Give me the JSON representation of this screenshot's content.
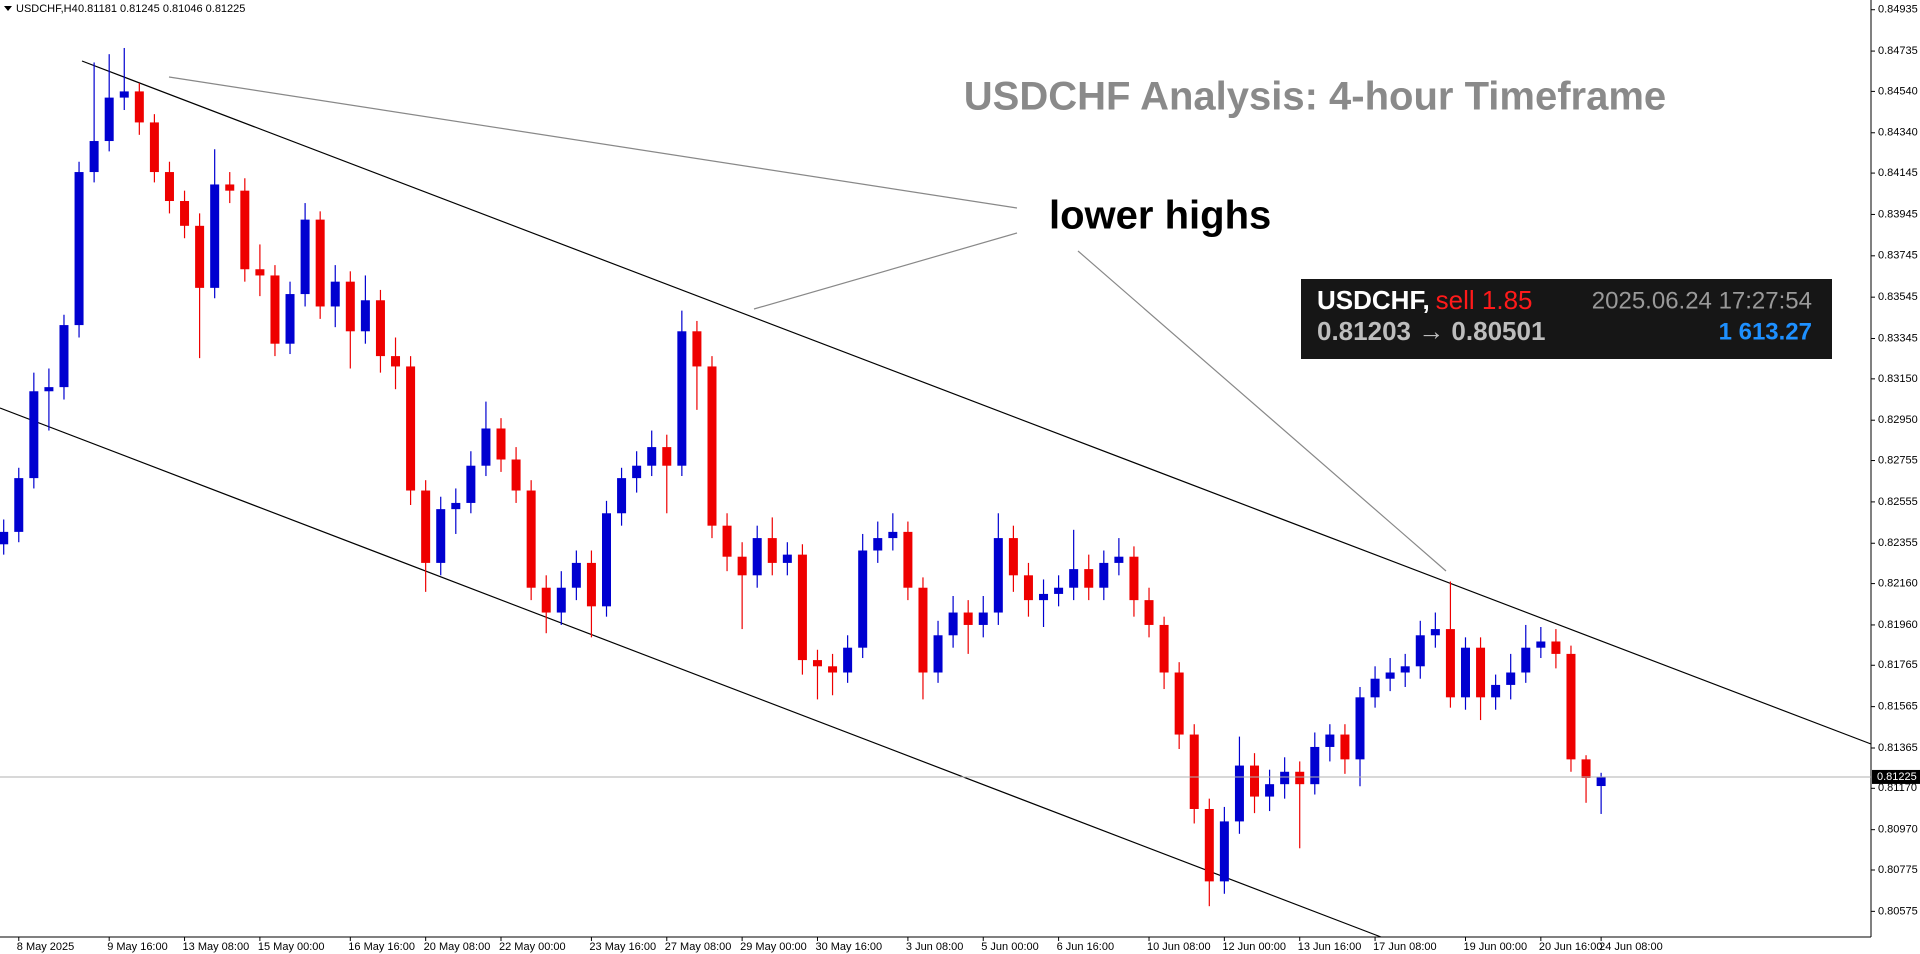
{
  "chart_data": {
    "type": "candlestick",
    "title": "USDCHF Analysis: 4-hour Timeframe",
    "annotation": "lower highs",
    "header": {
      "symbol": "USDCHF,H4",
      "quote": "0.81181 0.81245 0.81046 0.81225"
    },
    "trade_panel": {
      "symbol": "USDCHF,",
      "order": "sell 1.85",
      "time": "2025.06.24 17:27:54",
      "prices": "0.81203 → 0.80501",
      "profit": "1 613.27"
    },
    "up_color": "#0000d0",
    "down_color": "#ee0000",
    "categories": [
      null,
      "8 May 2025",
      null,
      null,
      null,
      null,
      null,
      "9 May 16:00",
      null,
      null,
      null,
      null,
      "13 May 08:00",
      null,
      null,
      null,
      null,
      "15 May 00:00",
      null,
      null,
      null,
      null,
      null,
      "16 May 16:00",
      null,
      null,
      null,
      null,
      "20 May 08:00",
      null,
      null,
      null,
      null,
      "22 May 00:00",
      null,
      null,
      null,
      null,
      null,
      "23 May 16:00",
      null,
      null,
      null,
      null,
      "27 May 08:00",
      null,
      null,
      null,
      null,
      "29 May 00:00",
      null,
      null,
      null,
      null,
      "30 May 16:00",
      null,
      null,
      null,
      null,
      null,
      "3 Jun 08:00",
      null,
      null,
      null,
      null,
      "5 Jun 00:00",
      null,
      null,
      null,
      null,
      "6 Jun 16:00",
      null,
      null,
      null,
      null,
      null,
      "10 Jun 08:00",
      null,
      null,
      null,
      null,
      "12 Jun 00:00",
      null,
      null,
      null,
      null,
      "13 Jun 16:00",
      null,
      null,
      null,
      null,
      "17 Jun 08:00",
      null,
      null,
      null,
      null,
      null,
      "19 Jun 00:00",
      null,
      null,
      null,
      null,
      "20 Jun 16:00",
      null,
      null,
      null,
      "24 Jun 08:00"
    ],
    "open": [
      0.8235,
      0.8241,
      0.8267,
      0.8309,
      0.8311,
      0.8341,
      0.8415,
      0.843,
      0.8451,
      0.8454,
      0.8439,
      0.8415,
      0.8401,
      0.8389,
      0.8359,
      0.8409,
      0.8406,
      0.8368,
      0.8365,
      0.8332,
      0.8356,
      0.8392,
      0.835,
      0.8362,
      0.8338,
      0.8353,
      0.8326,
      0.8321,
      0.8261,
      0.8226,
      0.8252,
      0.8255,
      0.8273,
      0.8291,
      0.8276,
      0.8261,
      0.8214,
      0.8202,
      0.8214,
      0.8226,
      0.8205,
      0.825,
      0.8267,
      0.8273,
      0.8282,
      0.8273,
      0.8338,
      0.8321,
      0.8244,
      0.8229,
      0.822,
      0.8238,
      0.8226,
      0.823,
      0.8179,
      0.8176,
      0.8173,
      0.8185,
      0.8232,
      0.8238,
      0.8241,
      0.8214,
      0.8173,
      0.8191,
      0.8202,
      0.8196,
      0.8202,
      0.8238,
      0.822,
      0.8208,
      0.8211,
      0.8214,
      0.8223,
      0.8214,
      0.8226,
      0.8229,
      0.8208,
      0.8196,
      0.8173,
      0.8143,
      0.8107,
      0.8072,
      0.8101,
      0.8128,
      0.8113,
      0.8119,
      0.8125,
      0.8119,
      0.8137,
      0.8143,
      0.8131,
      0.8161,
      0.817,
      0.8173,
      0.8176,
      0.8191,
      0.8194,
      0.8161,
      0.8185,
      0.8161,
      0.8167,
      0.8173,
      0.8185,
      0.8188,
      0.8182,
      0.8131,
      0.81181
    ],
    "high": [
      0.8247,
      0.8272,
      0.8318,
      0.832,
      0.8346,
      0.842,
      0.8468,
      0.8472,
      0.8475,
      0.8458,
      0.8443,
      0.842,
      0.8406,
      0.8395,
      0.8426,
      0.8415,
      0.8412,
      0.838,
      0.837,
      0.8362,
      0.84,
      0.8396,
      0.837,
      0.8367,
      0.8365,
      0.8358,
      0.8335,
      0.8326,
      0.8266,
      0.8258,
      0.8262,
      0.828,
      0.8304,
      0.8296,
      0.8282,
      0.8266,
      0.822,
      0.8222,
      0.8232,
      0.8232,
      0.8256,
      0.8272,
      0.828,
      0.829,
      0.8288,
      0.8348,
      0.8343,
      0.8326,
      0.825,
      0.8236,
      0.8244,
      0.8248,
      0.8236,
      0.8235,
      0.8184,
      0.8182,
      0.8191,
      0.824,
      0.8246,
      0.825,
      0.8246,
      0.8219,
      0.8198,
      0.821,
      0.8208,
      0.821,
      0.825,
      0.8244,
      0.8226,
      0.8218,
      0.822,
      0.8242,
      0.823,
      0.8232,
      0.8238,
      0.8234,
      0.8214,
      0.82,
      0.8178,
      0.8148,
      0.8112,
      0.8108,
      0.8142,
      0.8134,
      0.8126,
      0.8132,
      0.813,
      0.8144,
      0.8148,
      0.8148,
      0.8166,
      0.8176,
      0.818,
      0.8182,
      0.8198,
      0.8202,
      0.8217,
      0.819,
      0.819,
      0.8172,
      0.8182,
      0.8196,
      0.8195,
      0.8194,
      0.8186,
      0.8133,
      0.81245
    ],
    "low": [
      0.823,
      0.8236,
      0.8262,
      0.829,
      0.8305,
      0.8335,
      0.841,
      0.8425,
      0.8445,
      0.8433,
      0.841,
      0.8395,
      0.8383,
      0.8325,
      0.8354,
      0.84,
      0.8362,
      0.8355,
      0.8326,
      0.8327,
      0.835,
      0.8344,
      0.834,
      0.832,
      0.8332,
      0.8318,
      0.831,
      0.8254,
      0.8212,
      0.822,
      0.824,
      0.825,
      0.8268,
      0.827,
      0.8255,
      0.8208,
      0.8192,
      0.8196,
      0.8208,
      0.819,
      0.82,
      0.8244,
      0.826,
      0.8268,
      0.825,
      0.8268,
      0.83,
      0.8238,
      0.8222,
      0.8194,
      0.8214,
      0.822,
      0.822,
      0.8172,
      0.816,
      0.8162,
      0.8168,
      0.818,
      0.8226,
      0.8232,
      0.8208,
      0.816,
      0.8168,
      0.8185,
      0.8182,
      0.819,
      0.8196,
      0.8212,
      0.82,
      0.8195,
      0.8205,
      0.8208,
      0.8208,
      0.8208,
      0.822,
      0.82,
      0.819,
      0.8165,
      0.8136,
      0.81,
      0.806,
      0.8066,
      0.8095,
      0.8105,
      0.8106,
      0.8112,
      0.8088,
      0.8114,
      0.813,
      0.8124,
      0.8118,
      0.8156,
      0.8164,
      0.8166,
      0.817,
      0.8185,
      0.8156,
      0.8155,
      0.815,
      0.8155,
      0.816,
      0.8168,
      0.818,
      0.8175,
      0.8125,
      0.811,
      0.81046
    ],
    "close": [
      0.8241,
      0.8267,
      0.8309,
      0.8311,
      0.8341,
      0.8415,
      0.843,
      0.8451,
      0.8454,
      0.8439,
      0.8415,
      0.8401,
      0.8389,
      0.8359,
      0.8409,
      0.8406,
      0.8368,
      0.8365,
      0.8332,
      0.8356,
      0.8392,
      0.835,
      0.8362,
      0.8338,
      0.8353,
      0.8326,
      0.8321,
      0.8261,
      0.8226,
      0.8252,
      0.8255,
      0.8273,
      0.8291,
      0.8276,
      0.8261,
      0.8214,
      0.8202,
      0.8214,
      0.8226,
      0.8205,
      0.825,
      0.8267,
      0.8273,
      0.8282,
      0.8273,
      0.8338,
      0.8321,
      0.8244,
      0.8229,
      0.822,
      0.8238,
      0.8226,
      0.823,
      0.8179,
      0.8176,
      0.8173,
      0.8185,
      0.8232,
      0.8238,
      0.8241,
      0.8214,
      0.8173,
      0.8191,
      0.8202,
      0.8196,
      0.8202,
      0.8238,
      0.822,
      0.8208,
      0.8211,
      0.8214,
      0.8223,
      0.8214,
      0.8226,
      0.8229,
      0.8208,
      0.8196,
      0.8173,
      0.8143,
      0.8107,
      0.8072,
      0.8101,
      0.8128,
      0.8113,
      0.8119,
      0.8125,
      0.8119,
      0.8137,
      0.8143,
      0.8131,
      0.8161,
      0.817,
      0.8173,
      0.8176,
      0.8191,
      0.8194,
      0.8161,
      0.8185,
      0.8161,
      0.8167,
      0.8173,
      0.8185,
      0.8188,
      0.8182,
      0.8131,
      0.8122,
      0.81225
    ],
    "current_price": 0.81225,
    "ylim": [
      0.80451,
      0.84982
    ],
    "yticks": [
      0.84935,
      0.84735,
      {
        "value": 0.8454,
        "label": "0.84540"
      },
      {
        "value": 0.8434,
        "label": "0.84340"
      },
      0.84145,
      0.83945,
      0.83745,
      0.83545,
      0.83345,
      {
        "value": 0.8315,
        "label": "0.83150"
      },
      {
        "value": 0.8295,
        "label": "0.82950"
      },
      0.82755,
      0.82555,
      0.82355,
      {
        "value": 0.8216,
        "label": "0.82160"
      },
      {
        "value": 0.8196,
        "label": "0.81960"
      },
      0.81765,
      0.81565,
      0.81365,
      {
        "value": 0.8117,
        "label": "0.81170"
      },
      {
        "value": 0.8097,
        "label": "0.80970"
      },
      0.80775,
      0.80575
    ],
    "grid": false
  }
}
